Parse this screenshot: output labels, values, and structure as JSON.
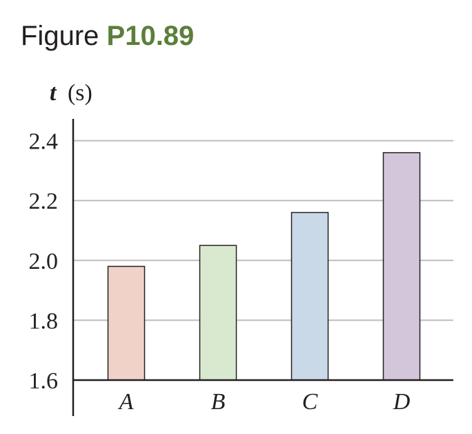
{
  "figure": {
    "label_prefix": "Figure",
    "label_number": "P10.89"
  },
  "chart_data": {
    "type": "bar",
    "ylabel_var": "t",
    "ylabel_unit": "(s)",
    "categories": [
      "A",
      "B",
      "C",
      "D"
    ],
    "values": [
      1.98,
      2.05,
      2.16,
      2.36
    ],
    "ylim": [
      1.6,
      2.47
    ],
    "yticks": [
      1.6,
      1.8,
      2.0,
      2.2,
      2.4
    ],
    "ytick_labels": [
      "1.6",
      "1.8",
      "2.0",
      "2.2",
      "2.4"
    ],
    "grid": true,
    "colors": [
      "#f0d2c8",
      "#d9e9d0",
      "#c9d9e8",
      "#d3c6da"
    ]
  }
}
